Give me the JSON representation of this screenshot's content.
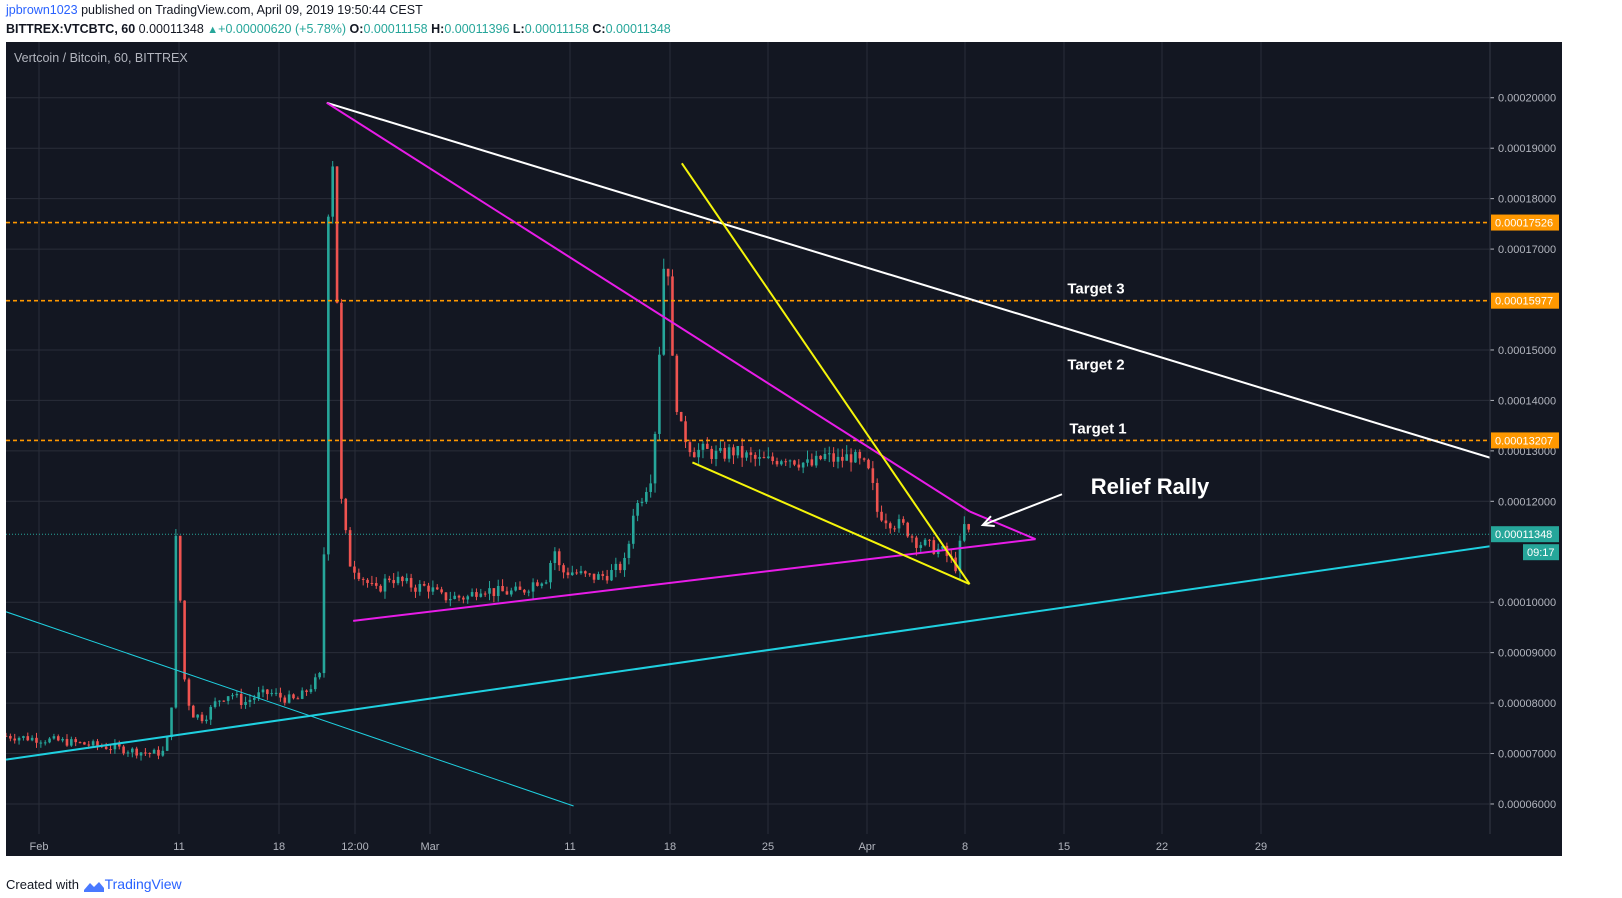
{
  "header": {
    "author": "jpbrown1023",
    "published": " published on TradingView.com, April 09, 2019 19:50:44 CEST",
    "symbol_line": "BITTREX:VTCBTC, 60",
    "last": "0.00011348",
    "change": "+0.00000620 (+5.78%)",
    "o_label": "O:",
    "o_val": "0.00011158",
    "h_label": "H:",
    "h_val": "0.00011396",
    "l_label": "L:",
    "l_val": "0.00011158",
    "c_label": "C:",
    "c_val": "0.00011348"
  },
  "footer": {
    "created": "Created with",
    "brand": "TradingView"
  },
  "colors": {
    "background": "#131722",
    "grid": "#2a2e39",
    "axis_text": "#b2b5be",
    "magenta": "#e81ce8",
    "yellow": "#f5f50a",
    "cyan": "#1fd0e0",
    "white": "#ffffff",
    "orange": "#ff9800",
    "up": "#26a69a",
    "down": "#ef5350"
  },
  "chart_data": {
    "type": "candlestick",
    "title": "Vertcoin / Bitcoin, 60, BITTREX",
    "y_ticks": [
      "0.00020000",
      "0.00019000",
      "0.00018000",
      "0.00017000",
      "0.00015000",
      "0.00014000",
      "0.00013000",
      "0.00012000",
      "0.00010000",
      "0.00009000",
      "0.00008000",
      "0.00007000",
      "0.00006000"
    ],
    "ylim": [
      5.96e-05,
      0.0002055
    ],
    "x_ticks": [
      "Feb",
      "11",
      "18",
      "12:00",
      "Mar",
      "11",
      "18",
      "25",
      "Apr",
      "8",
      "15",
      "22",
      "29"
    ],
    "horizontal_levels": [
      {
        "label": "0.00017526",
        "value": 0.00017526
      },
      {
        "label": "0.00015977",
        "value": 0.00015977
      },
      {
        "label": "0.00013207",
        "value": 0.00013207
      }
    ],
    "last_price": {
      "label": "0.00011348",
      "value": 0.00011348,
      "countdown": "09:17"
    },
    "annotations": [
      {
        "text": "Target 3",
        "value": 0.0001612
      },
      {
        "text": "Target 2",
        "value": 0.0001461
      },
      {
        "text": "Target 1",
        "value": 0.0001334
      },
      {
        "text": "Relief Rally",
        "value": 0.0001214
      }
    ],
    "price_path": [
      [
        0,
        7.35e-05
      ],
      [
        4,
        7.25e-05
      ],
      [
        8,
        7.12e-05
      ],
      [
        11,
        7e-05
      ],
      [
        12,
        7.03e-05
      ],
      [
        12.5,
        7.6e-05
      ],
      [
        13,
        0.000125
      ],
      [
        13.3,
        8.8e-05
      ],
      [
        14,
        7.8e-05
      ],
      [
        15,
        7.7e-05
      ],
      [
        16,
        8.05e-05
      ],
      [
        17,
        8.2e-05
      ],
      [
        18,
        8e-05
      ],
      [
        19,
        8.15e-05
      ],
      [
        20,
        8.2e-05
      ],
      [
        21,
        8.1e-05
      ],
      [
        22,
        8.05e-05
      ],
      [
        23,
        8.3e-05
      ],
      [
        24,
        8.6e-05
      ],
      [
        24.3,
        0.000165
      ],
      [
        24.6,
        0.000198
      ],
      [
        25,
        0.00017
      ],
      [
        25.4,
        0.00012
      ],
      [
        26,
        0.000108
      ],
      [
        27,
        0.000105
      ],
      [
        28,
        0.000102
      ],
      [
        29,
        0.000105
      ],
      [
        30,
        0.000104
      ],
      [
        31,
        0.000103
      ],
      [
        32,
        0.000103
      ],
      [
        33,
        0.000101
      ],
      [
        34,
        0.000101
      ],
      [
        35,
        0.000101
      ],
      [
        36,
        0.000103
      ],
      [
        37,
        0.000102
      ],
      [
        38,
        0.000102
      ],
      [
        39,
        0.000102
      ],
      [
        40,
        0.000104
      ],
      [
        41,
        0.000105
      ],
      [
        41.5,
        0.000111
      ],
      [
        42,
        0.000106
      ],
      [
        43,
        0.000106
      ],
      [
        44,
        0.000105
      ],
      [
        45,
        0.000105
      ],
      [
        46,
        0.000106
      ],
      [
        47,
        0.000108
      ],
      [
        47.5,
        0.000118
      ],
      [
        48,
        0.00012
      ],
      [
        49,
        0.000126
      ],
      [
        49.5,
        0.00015
      ],
      [
        50,
        0.000175
      ],
      [
        50.5,
        0.000147
      ],
      [
        51,
        0.000135
      ],
      [
        52,
        0.00013
      ],
      [
        53,
        0.00013
      ],
      [
        54,
        0.000129
      ],
      [
        55,
        0.00013
      ],
      [
        56,
        0.000129
      ],
      [
        57,
        0.000128
      ],
      [
        58,
        0.000128
      ],
      [
        59,
        0.000129
      ],
      [
        60,
        0.000128
      ],
      [
        61,
        0.000127
      ],
      [
        62,
        0.000129
      ],
      [
        63,
        0.000128
      ],
      [
        64,
        0.000129
      ],
      [
        65,
        0.000127
      ],
      [
        65.5,
        0.000125
      ],
      [
        66,
        0.000118
      ],
      [
        67,
        0.000116
      ],
      [
        68,
        0.000115
      ],
      [
        69,
        0.000112
      ],
      [
        70,
        0.000111
      ],
      [
        71,
        0.00011
      ],
      [
        72,
        0.000107
      ],
      [
        72.4,
        0.000113
      ],
      [
        72.7,
        0.000116
      ],
      [
        73,
        0.000113
      ]
    ],
    "trendlines": [
      {
        "color": "white",
        "from": [
          24.3,
          0.000199
        ],
        "to": [
          126,
          0.0001178
        ]
      },
      {
        "color": "magenta",
        "from": [
          24.3,
          0.000199
        ],
        "to": [
          73,
          0.000118
        ]
      },
      {
        "color": "magenta",
        "from": [
          73,
          0.000118
        ],
        "to": [
          78,
          0.0001125
        ]
      },
      {
        "color": "magenta",
        "from": [
          26.3,
          9.63e-05
        ],
        "to": [
          78,
          0.0001125
        ]
      },
      {
        "color": "yellow",
        "from": [
          51.2,
          0.000187
        ],
        "to": [
          73,
          0.0001036
        ]
      },
      {
        "color": "yellow",
        "from": [
          52,
          0.0001277
        ],
        "to": [
          73,
          0.0001036
        ]
      },
      {
        "color": "cyan",
        "from": [
          0,
          6.88e-05
        ],
        "to": [
          138,
          0.0001207
        ]
      },
      {
        "color": "cyan",
        "from": [
          0,
          9.81e-05
        ],
        "to": [
          43,
          5.96e-05
        ],
        "thin": true
      }
    ],
    "arrow": {
      "from": [
        80,
        0.0001214
      ],
      "to": [
        74,
        0.0001153
      ]
    },
    "grid": true
  }
}
